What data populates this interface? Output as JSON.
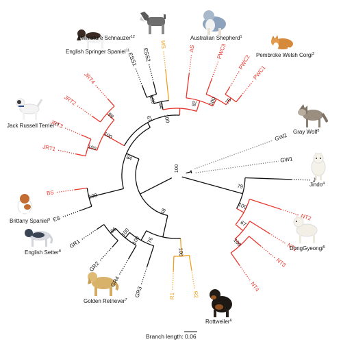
{
  "tips": {
    "MS": "MS",
    "AS": "AS",
    "PWC3": "PWC3",
    "PWC2": "PWC2",
    "PWC1": "PWC1",
    "ESS1": "ESS1",
    "ESS2": "ESS2",
    "JRT4": "JRT4",
    "JRT2": "JRT2",
    "JRT3": "JRT3",
    "JRT1": "JRT1",
    "BS": "BS",
    "ES": "ES",
    "GR1": "GR1",
    "GR2": "GR2",
    "GR4": "GR4",
    "GR3": "GR3",
    "R1": "R1",
    "R2": "R2",
    "GW1": "GW1",
    "GW2": "GW2",
    "J": "J",
    "NT1": "NT1",
    "NT2": "NT2",
    "NT3": "NT3",
    "NT4": "NT4"
  },
  "bootstrap": {
    "ms_ess": "84",
    "ess": "100",
    "as_pwc": "82",
    "pwc": "100",
    "pwc12": "75",
    "terrier_clade": "67",
    "big_clade": "100",
    "jrt_all": "100",
    "jrt24": "99",
    "jrt13": "100",
    "jrt_setter": "84",
    "setters": "100",
    "retr_rott": "48",
    "ret": "100",
    "gr_pair": "96",
    "gr_trip": "100",
    "gr_all": "76",
    "rott": "100",
    "wolves": "100",
    "jindo_nt": "79",
    "nt": "100",
    "nt13": "67",
    "nt34": "100"
  },
  "breeds": {
    "miniature_schnauzer": "Miniature Schnauzer",
    "australian_shepherd": "Australian Shepherd",
    "english_springer_spaniel": "English Springer Spaniel",
    "pembroke_welsh_corgi": "Pembroke Welsh Corgi",
    "jack_russell_terrier": "Jack Russell Terrier",
    "gray_wolf": "Gray Wolf",
    "jindo": "Jindo",
    "brittany_spaniel": "Brittany Spaniel",
    "english_setter": "English Setter",
    "donggyeongi": "DongGyeongi",
    "golden_retriever": "Golden Retriever",
    "rottweiler": "Rottweiler"
  },
  "refs": {
    "miniature_schnauzer": "12",
    "australian_shepherd": "1",
    "english_springer_spaniel": "11",
    "pembroke_welsh_corgi": "2",
    "jack_russell_terrier": "10",
    "gray_wolf": "3",
    "jindo": "4",
    "brittany_spaniel": "9",
    "english_setter": "8",
    "donggyeongi": "5",
    "golden_retriever": "7",
    "rottweiler": "6"
  },
  "scale": {
    "label": "Branch length:",
    "value": "0.06"
  },
  "colors": {
    "clade_red": "#e8352b",
    "clade_orange": "#f0a020",
    "backbone": "#111111",
    "wolf_dotted": "#777777"
  },
  "icons": [
    "miniature-schnauzer-photo",
    "australian-shepherd-photo",
    "english-springer-spaniel-photo",
    "pembroke-welsh-corgi-photo",
    "jack-russell-terrier-photo",
    "gray-wolf-photo",
    "jindo-photo",
    "brittany-spaniel-photo",
    "english-setter-photo",
    "donggyeongi-photo",
    "golden-retriever-photo",
    "rottweiler-photo"
  ]
}
